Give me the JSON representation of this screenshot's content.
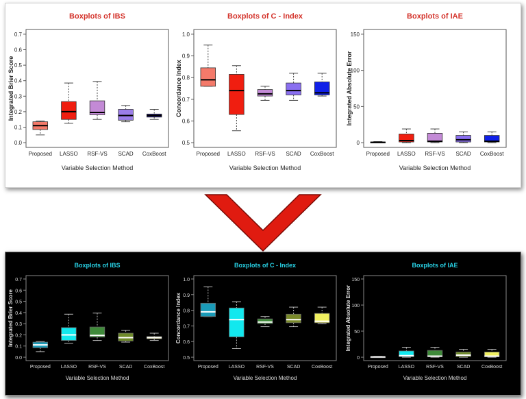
{
  "colors": {
    "top_title": "#d4342c",
    "bottom_title": "#29d4e8",
    "arrow": "#e01b10"
  },
  "icons": {
    "transition_arrow": "down-chevron-arrow"
  },
  "chart_data": [
    {
      "panel": "top",
      "type": "boxplot",
      "title": "Boxplots of IBS",
      "xlabel": "Variable Selection Method",
      "ylabel": "Integrated Brier Score",
      "categories": [
        "Proposed",
        "LASSO",
        "RSF-VS",
        "SCAD",
        "CoxBoost"
      ],
      "ylim": [
        0,
        0.7
      ],
      "yticks": [
        "0.0",
        "0.1",
        "0.2",
        "0.3",
        "0.4",
        "0.5",
        "0.6",
        "0.7"
      ],
      "ytick_values": [
        0,
        0.1,
        0.2,
        0.3,
        0.4,
        0.5,
        0.6,
        0.7
      ],
      "boxes": [
        {
          "min": 0.05,
          "q1": 0.085,
          "median": 0.11,
          "q3": 0.135,
          "max": 0.14,
          "color": "#f47a6a"
        },
        {
          "min": 0.125,
          "q1": 0.15,
          "median": 0.2,
          "q3": 0.265,
          "max": 0.385,
          "color": "#f01e10"
        },
        {
          "min": 0.15,
          "q1": 0.18,
          "median": 0.195,
          "q3": 0.27,
          "max": 0.395,
          "color": "#c38ad6"
        },
        {
          "min": 0.135,
          "q1": 0.145,
          "median": 0.175,
          "q3": 0.215,
          "max": 0.24,
          "color": "#9b7ee8"
        },
        {
          "min": 0.15,
          "q1": 0.165,
          "median": 0.175,
          "q3": 0.185,
          "max": 0.215,
          "color": "#1a0f7a"
        }
      ]
    },
    {
      "panel": "top",
      "type": "boxplot",
      "title": "Boxplots of C - Index",
      "xlabel": "Variable Selection Method",
      "ylabel": "Concordance Index",
      "categories": [
        "Proposed",
        "LASSO",
        "RSF-VS",
        "SCAD",
        "CoxBoost"
      ],
      "ylim": [
        0.5,
        1.0
      ],
      "yticks": [
        "0.5",
        "0.6",
        "0.7",
        "0.8",
        "0.9",
        "1.0"
      ],
      "ytick_values": [
        0.5,
        0.6,
        0.7,
        0.8,
        0.9,
        1.0
      ],
      "boxes": [
        {
          "min": 0.76,
          "q1": 0.76,
          "median": 0.79,
          "q3": 0.845,
          "max": 0.95,
          "color": "#f47a6a"
        },
        {
          "min": 0.555,
          "q1": 0.63,
          "median": 0.74,
          "q3": 0.815,
          "max": 0.855,
          "color": "#f01e10"
        },
        {
          "min": 0.695,
          "q1": 0.715,
          "median": 0.725,
          "q3": 0.745,
          "max": 0.76,
          "color": "#c38ad6"
        },
        {
          "min": 0.695,
          "q1": 0.72,
          "median": 0.74,
          "q3": 0.775,
          "max": 0.82,
          "color": "#8a6ff0"
        },
        {
          "min": 0.715,
          "q1": 0.72,
          "median": 0.73,
          "q3": 0.78,
          "max": 0.82,
          "color": "#1020e8"
        }
      ]
    },
    {
      "panel": "top",
      "type": "boxplot",
      "title": "Boxplots of IAE",
      "xlabel": "Variable Selection Method",
      "ylabel": "Integrated Absolute Error",
      "categories": [
        "Proposed",
        "LASSO",
        "RSF-VS",
        "SCAD",
        "CoxBoost"
      ],
      "ylim": [
        0,
        150
      ],
      "yticks": [
        "0",
        "50",
        "100",
        "150"
      ],
      "ytick_values": [
        0,
        50,
        100,
        150
      ],
      "boxes": [
        {
          "min": 0,
          "q1": 0,
          "median": 0.5,
          "q3": 1,
          "max": 1.5,
          "color": "#f47a6a"
        },
        {
          "min": 0,
          "q1": 1,
          "median": 3,
          "q3": 12,
          "max": 19,
          "color": "#f01e10"
        },
        {
          "min": 0,
          "q1": 1,
          "median": 2,
          "q3": 13,
          "max": 19,
          "color": "#c38ad6"
        },
        {
          "min": 0,
          "q1": 1,
          "median": 4,
          "q3": 10,
          "max": 15,
          "color": "#8a6ff0"
        },
        {
          "min": 0,
          "q1": 1,
          "median": 2,
          "q3": 10,
          "max": 15,
          "color": "#1020e8"
        }
      ]
    },
    {
      "panel": "bottom",
      "type": "boxplot",
      "title": "Boxplots of IBS",
      "xlabel": "Variable Selection Method",
      "ylabel": "Integrated Brier Score",
      "categories": [
        "Proposed",
        "LASSO",
        "RSF-VS",
        "SCAD",
        "CoxBoost"
      ],
      "ylim": [
        0,
        0.7
      ],
      "yticks": [
        "0.0",
        "0.1",
        "0.2",
        "0.3",
        "0.4",
        "0.5",
        "0.6",
        "0.7"
      ],
      "ytick_values": [
        0,
        0.1,
        0.2,
        0.3,
        0.4,
        0.5,
        0.6,
        0.7
      ],
      "boxes": [
        {
          "min": 0.05,
          "q1": 0.085,
          "median": 0.11,
          "q3": 0.135,
          "max": 0.14,
          "color": "#1a9bb8"
        },
        {
          "min": 0.125,
          "q1": 0.15,
          "median": 0.2,
          "q3": 0.265,
          "max": 0.385,
          "color": "#12e8ee"
        },
        {
          "min": 0.15,
          "q1": 0.18,
          "median": 0.195,
          "q3": 0.27,
          "max": 0.395,
          "color": "#3f8a3a"
        },
        {
          "min": 0.135,
          "q1": 0.145,
          "median": 0.175,
          "q3": 0.215,
          "max": 0.24,
          "color": "#6f8a2a"
        },
        {
          "min": 0.15,
          "q1": 0.165,
          "median": 0.175,
          "q3": 0.185,
          "max": 0.215,
          "color": "#f0f060"
        }
      ]
    },
    {
      "panel": "bottom",
      "type": "boxplot",
      "title": "Boxplots of C - Index",
      "xlabel": "Variable Selection Method",
      "ylabel": "Concordance Index",
      "categories": [
        "Proposed",
        "LASSO",
        "RSF-VS",
        "SCAD",
        "CoxBoost"
      ],
      "ylim": [
        0.5,
        1.0
      ],
      "yticks": [
        "0.5",
        "0.6",
        "0.7",
        "0.8",
        "0.9",
        "1.0"
      ],
      "ytick_values": [
        0.5,
        0.6,
        0.7,
        0.8,
        0.9,
        1.0
      ],
      "boxes": [
        {
          "min": 0.76,
          "q1": 0.76,
          "median": 0.79,
          "q3": 0.845,
          "max": 0.95,
          "color": "#1a9bb8"
        },
        {
          "min": 0.555,
          "q1": 0.63,
          "median": 0.74,
          "q3": 0.815,
          "max": 0.855,
          "color": "#12e8ee"
        },
        {
          "min": 0.695,
          "q1": 0.715,
          "median": 0.725,
          "q3": 0.745,
          "max": 0.76,
          "color": "#3f8a3a"
        },
        {
          "min": 0.695,
          "q1": 0.72,
          "median": 0.74,
          "q3": 0.775,
          "max": 0.82,
          "color": "#7a8a2a"
        },
        {
          "min": 0.715,
          "q1": 0.72,
          "median": 0.73,
          "q3": 0.78,
          "max": 0.82,
          "color": "#f0f060"
        }
      ]
    },
    {
      "panel": "bottom",
      "type": "boxplot",
      "title": "Boxplots of IAE",
      "xlabel": "Variable Selection Method",
      "ylabel": "Integrated Absolute Error",
      "categories": [
        "Proposed",
        "LASSO",
        "RSF-VS",
        "SCAD",
        "CoxBoost"
      ],
      "ylim": [
        0,
        150
      ],
      "yticks": [
        "0",
        "50",
        "100",
        "150"
      ],
      "ytick_values": [
        0,
        50,
        100,
        150
      ],
      "boxes": [
        {
          "min": 0,
          "q1": 0,
          "median": 0.5,
          "q3": 1,
          "max": 1.5,
          "color": "#1a9bb8"
        },
        {
          "min": 0,
          "q1": 1,
          "median": 3,
          "q3": 12,
          "max": 19,
          "color": "#12e8ee"
        },
        {
          "min": 0,
          "q1": 1,
          "median": 2,
          "q3": 13,
          "max": 19,
          "color": "#3f8a3a"
        },
        {
          "min": 0,
          "q1": 1,
          "median": 4,
          "q3": 10,
          "max": 15,
          "color": "#6f8a2a"
        },
        {
          "min": 0,
          "q1": 1,
          "median": 2,
          "q3": 10,
          "max": 15,
          "color": "#f0f060"
        }
      ]
    }
  ]
}
